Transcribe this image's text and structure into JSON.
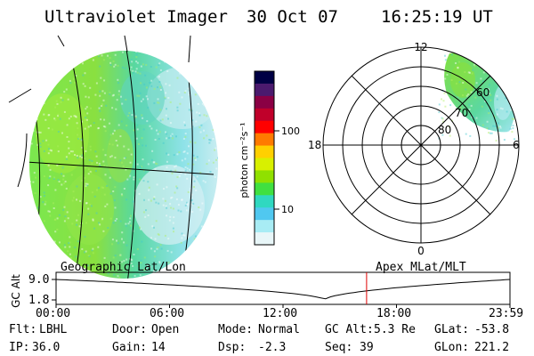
{
  "header": {
    "title": "Ultraviolet Imager",
    "date": "30 Oct 07",
    "time": "16:25:19 UT"
  },
  "geographic_panel": {
    "label": "Geographic Lat/Lon"
  },
  "polar_panel": {
    "label": "Apex MLat/MLT",
    "mlt_labels": [
      "12",
      "18",
      "6",
      "0"
    ],
    "mlat_labels": [
      "80",
      "70",
      "60"
    ]
  },
  "colorbar": {
    "unit_label": "photon cm⁻²s⁻¹",
    "ticks": [
      "100",
      "10"
    ],
    "colors": [
      "#000044",
      "#4b1a6e",
      "#8a0044",
      "#c0002a",
      "#ff0000",
      "#ff7a00",
      "#ffd000",
      "#d8f000",
      "#90e000",
      "#40e040",
      "#30d8c0",
      "#50c8f0",
      "#a8ecf4",
      "#e8f6f8"
    ]
  },
  "altitude_plot": {
    "ylabel": "GC Alt",
    "y_ticks": [
      "9.0",
      "1.8"
    ],
    "x_ticks": [
      "00:00",
      "06:00",
      "12:00",
      "18:00",
      "23:59"
    ],
    "current_time_hours": 16.42,
    "marker_color": "#e00000"
  },
  "status": {
    "row1": [
      {
        "key": "Flt:",
        "value": "LBHL"
      },
      {
        "key": "Door:",
        "value": "Open"
      },
      {
        "key": "Mode:",
        "value": "Normal"
      },
      {
        "key": "GC Alt:",
        "value": "5.3 Re"
      },
      {
        "key": "GLat:",
        "value": "-53.8"
      }
    ],
    "row2": [
      {
        "key": "IP:",
        "value": "36.0"
      },
      {
        "key": "Gain:",
        "value": "14"
      },
      {
        "key": "Dsp:",
        "value": "-2.3"
      },
      {
        "key": "Seq:",
        "value": "39"
      },
      {
        "key": "GLon:",
        "value": "221.2"
      }
    ]
  }
}
